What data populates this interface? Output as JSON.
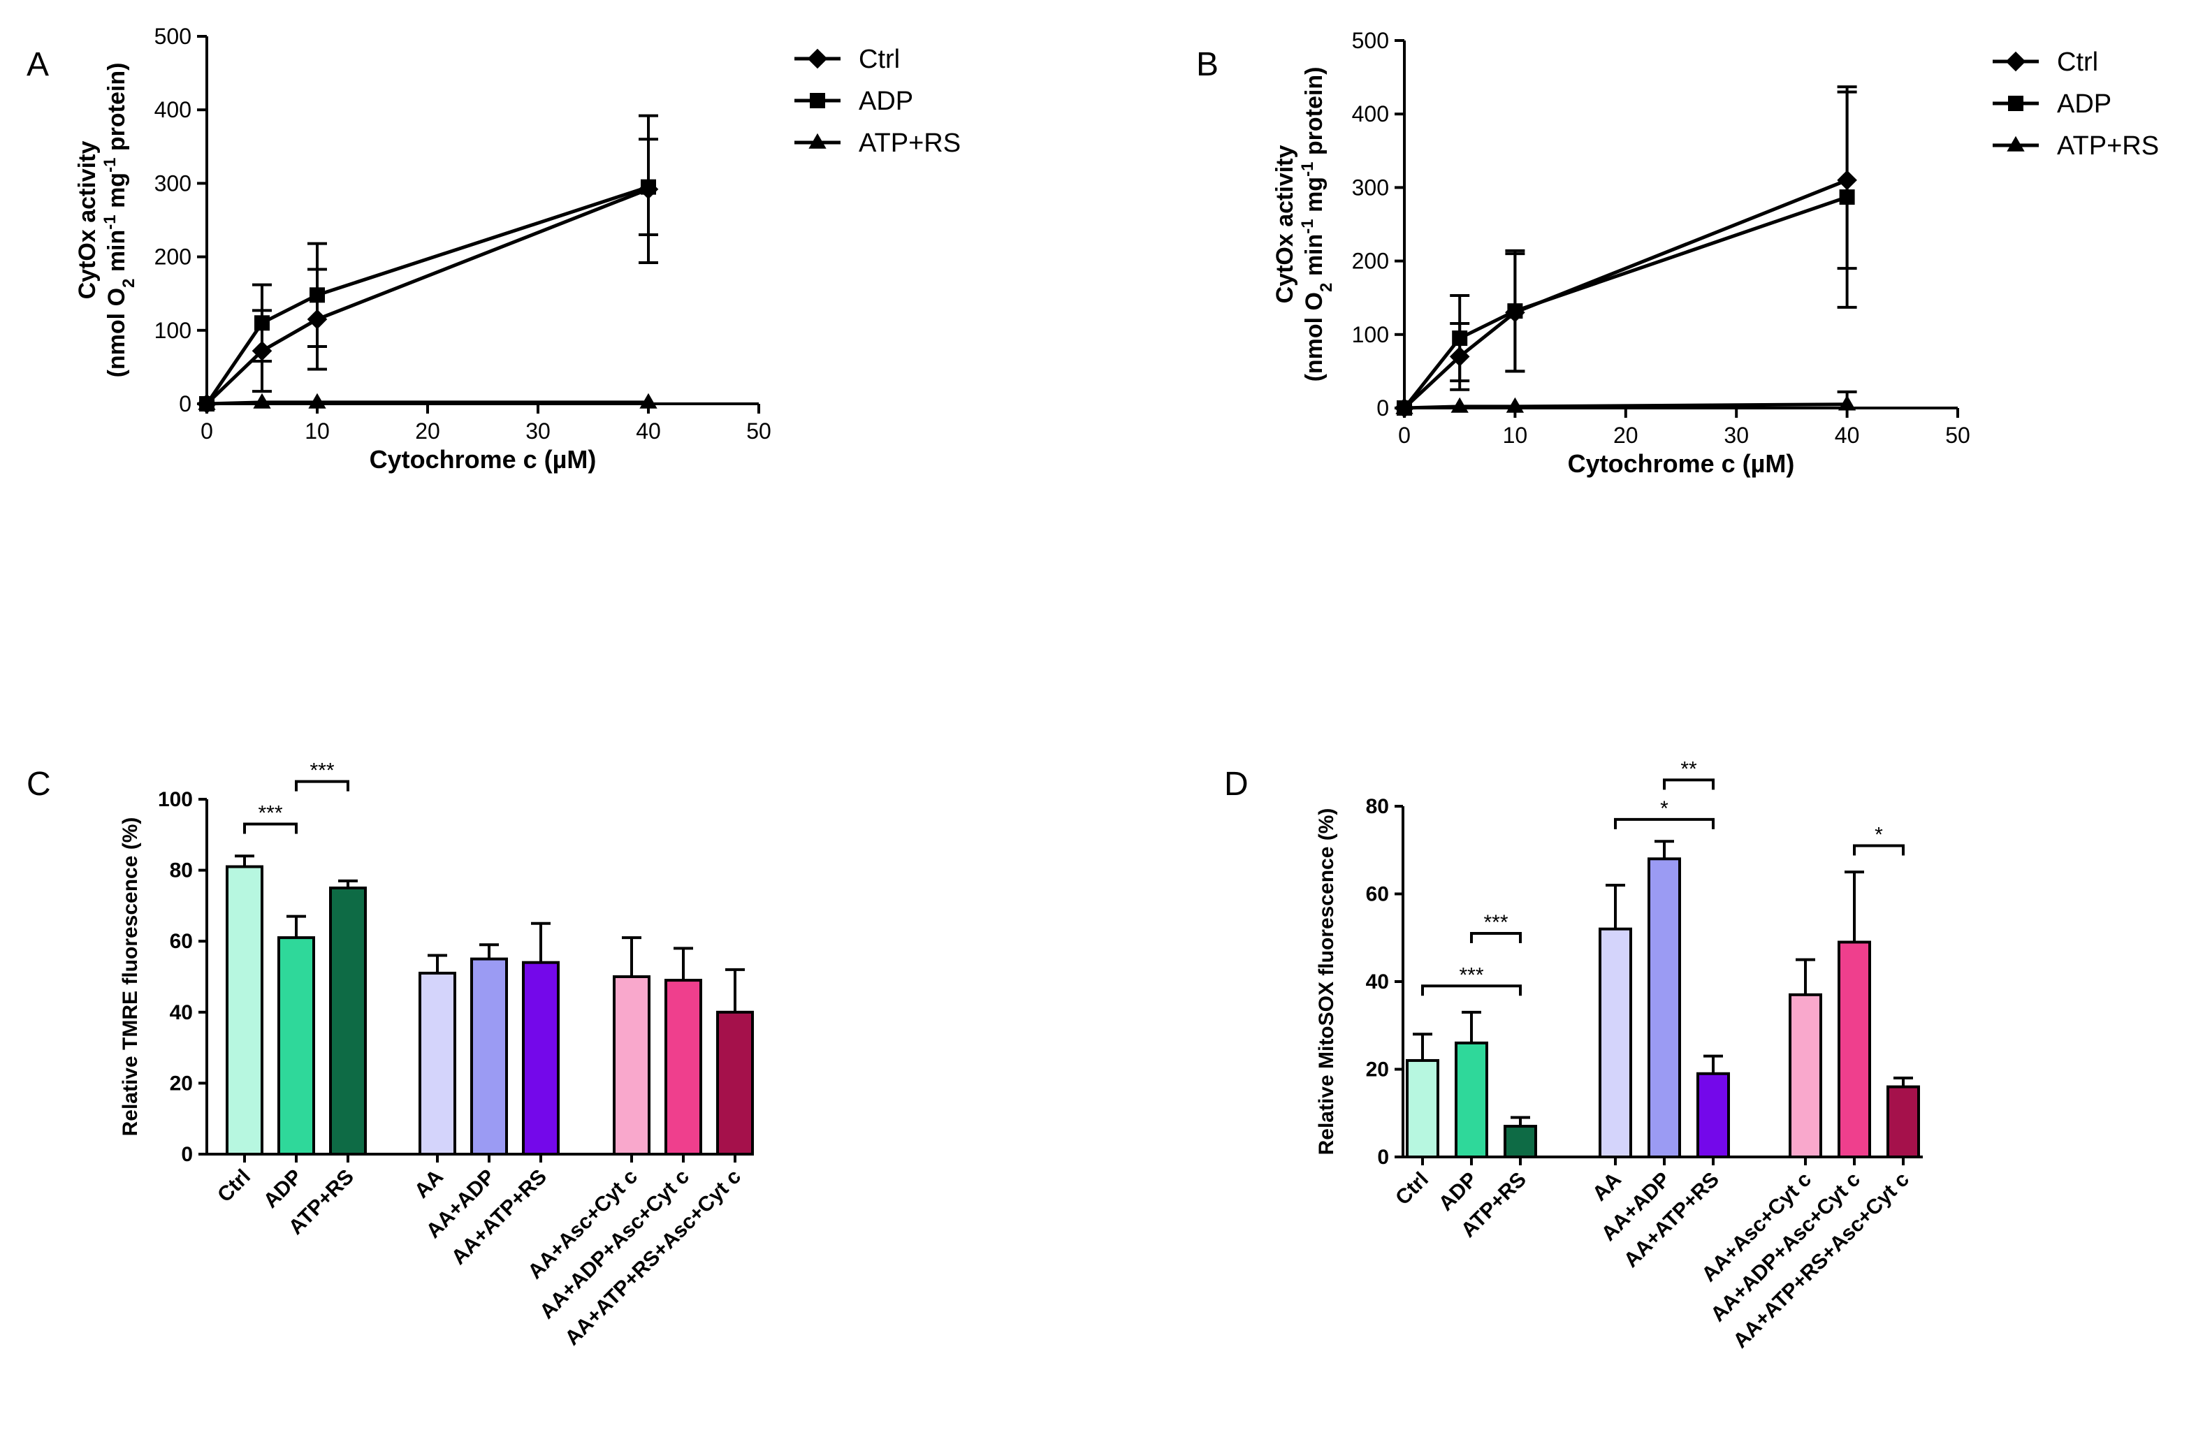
{
  "chart_data": [
    {
      "panel": "A",
      "type": "line",
      "xlabel": "Cytochrome c (µM)",
      "ylabel_line1": "CytOx activity",
      "ylabel_line2_a": "(nmol O",
      "ylabel_line2_sub": "2",
      "ylabel_line2_b": " min",
      "ylabel_line2_sup1": "-1",
      "ylabel_line2_c": " mg",
      "ylabel_line2_sup2": "-1",
      "ylabel_line2_d": " protein)",
      "xlim": [
        0,
        50
      ],
      "ylim": [
        0,
        500
      ],
      "xticks": [
        0,
        10,
        20,
        30,
        40,
        50
      ],
      "yticks": [
        0,
        100,
        200,
        300,
        400,
        500
      ],
      "legend_position": "right",
      "series": [
        {
          "name": "Ctrl",
          "marker": "diamond",
          "x": [
            0,
            5,
            10,
            40
          ],
          "y": [
            0,
            72,
            115,
            292
          ],
          "err": [
            0,
            55,
            68,
            100
          ]
        },
        {
          "name": "ADP",
          "marker": "square",
          "x": [
            0,
            5,
            10,
            40
          ],
          "y": [
            0,
            110,
            148,
            295
          ],
          "err": [
            0,
            52,
            70,
            65
          ]
        },
        {
          "name": "ATP+RS",
          "marker": "triangle",
          "x": [
            0,
            5,
            10,
            40
          ],
          "y": [
            0,
            2,
            2,
            2
          ],
          "err": [
            0,
            0,
            0,
            0
          ]
        }
      ]
    },
    {
      "panel": "B",
      "type": "line",
      "xlabel": "Cytochrome c (µM)",
      "ylabel_line1": "CytOx activity",
      "ylabel_line2_a": "(nmol O",
      "ylabel_line2_sub": "2",
      "ylabel_line2_b": " min",
      "ylabel_line2_sup1": "-1",
      "ylabel_line2_c": " mg",
      "ylabel_line2_sup2": "-1",
      "ylabel_line2_d": " protein)",
      "xlim": [
        0,
        50
      ],
      "ylim": [
        0,
        500
      ],
      "xticks": [
        0,
        10,
        20,
        30,
        40,
        50
      ],
      "yticks": [
        0,
        100,
        200,
        300,
        400,
        500
      ],
      "legend_position": "right",
      "series": [
        {
          "name": "Ctrl",
          "marker": "diamond",
          "x": [
            0,
            5,
            10,
            40
          ],
          "y": [
            0,
            70,
            130,
            310
          ],
          "err": [
            0,
            45,
            80,
            120
          ]
        },
        {
          "name": "ADP",
          "marker": "square",
          "x": [
            0,
            5,
            10,
            40
          ],
          "y": [
            0,
            95,
            132,
            287
          ],
          "err": [
            0,
            58,
            82,
            150
          ]
        },
        {
          "name": "ATP+RS",
          "marker": "triangle",
          "x": [
            0,
            5,
            10,
            40
          ],
          "y": [
            0,
            2,
            2,
            5
          ],
          "err": [
            0,
            0,
            0,
            17
          ]
        }
      ]
    },
    {
      "panel": "C",
      "type": "bar",
      "ylabel": "Relative TMRE fluorescence (%)",
      "ylim": [
        0,
        100
      ],
      "yticks": [
        0,
        20,
        40,
        60,
        80,
        100
      ],
      "categories": [
        "Ctrl",
        "ADP",
        "ATP+RS",
        "AA",
        "AA+ADP",
        "AA+ATP+RS",
        "AA+Asc+Cyt c",
        "AA+ADP+Asc+Cyt c",
        "AA+ATP+RS+Asc+Cyt c"
      ],
      "values": [
        81,
        61,
        75,
        51,
        55,
        54,
        50,
        49,
        40
      ],
      "errors": [
        3,
        6,
        2,
        5,
        4,
        11,
        11,
        9,
        12
      ],
      "colors": [
        "#b7f7e0",
        "#2fd89a",
        "#0e6b45",
        "#d4d4fb",
        "#9b9bf3",
        "#7408ea",
        "#f9a8cc",
        "#ef3f8d",
        "#a5114b"
      ],
      "groups": [
        [
          0,
          1,
          2
        ],
        [
          3,
          4,
          5
        ],
        [
          6,
          7,
          8
        ]
      ],
      "significance": [
        {
          "from": 0,
          "to": 1,
          "label": "***",
          "y": 93
        },
        {
          "from": 1,
          "to": 2,
          "label": "***",
          "y": 105
        }
      ]
    },
    {
      "panel": "D",
      "type": "bar",
      "ylabel": "Relative MitoSOX fluorescence (%)",
      "ylim": [
        0,
        80
      ],
      "yticks": [
        0,
        20,
        40,
        60,
        80
      ],
      "categories": [
        "Ctrl",
        "ADP",
        "ATP+RS",
        "AA",
        "AA+ADP",
        "AA+ATP+RS",
        "AA+Asc+Cyt c",
        "AA+ADP+Asc+Cyt c",
        "AA+ATP+RS+Asc+Cyt c"
      ],
      "values": [
        22,
        26,
        7,
        52,
        68,
        19,
        37,
        49,
        16
      ],
      "errors": [
        6,
        7,
        2,
        10,
        4,
        4,
        8,
        16,
        2
      ],
      "colors": [
        "#b7f7e0",
        "#2fd89a",
        "#0e6b45",
        "#d4d4fb",
        "#9b9bf3",
        "#7408ea",
        "#f9a8cc",
        "#ef3f8d",
        "#a5114b"
      ],
      "groups": [
        [
          0,
          1,
          2
        ],
        [
          3,
          4,
          5
        ],
        [
          6,
          7,
          8
        ]
      ],
      "significance": [
        {
          "from": 0,
          "to": 2,
          "label": "***",
          "y": 39
        },
        {
          "from": 1,
          "to": 2,
          "label": "***",
          "y": 51
        },
        {
          "from": 3,
          "to": 5,
          "label": "*",
          "y": 77
        },
        {
          "from": 4,
          "to": 5,
          "label": "**",
          "y": 86
        },
        {
          "from": 7,
          "to": 8,
          "label": "*",
          "y": 71
        }
      ]
    }
  ]
}
